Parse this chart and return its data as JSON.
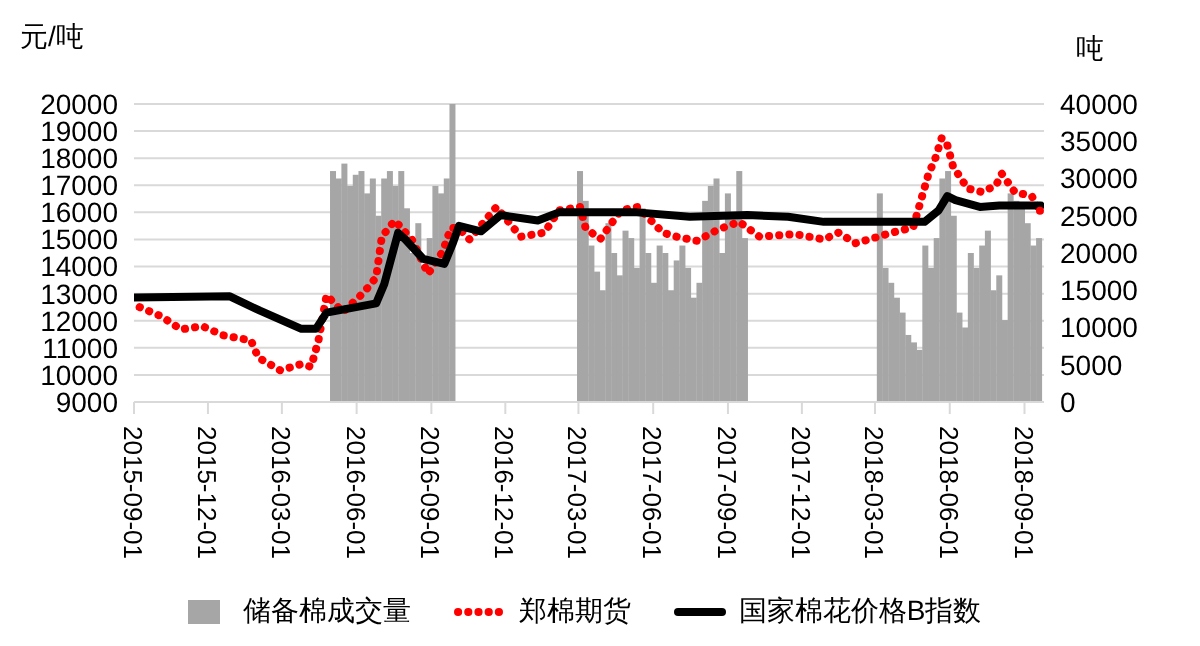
{
  "chart_data": {
    "type": "line",
    "ylabel": "元/吨",
    "y2label": "吨",
    "xlim": [
      "2015-09-01",
      "2018-09-25"
    ],
    "xticks": [
      "2015-09-01",
      "2015-12-01",
      "2016-03-01",
      "2016-06-01",
      "2016-09-01",
      "2016-12-01",
      "2017-03-01",
      "2017-06-01",
      "2017-09-01",
      "2017-12-01",
      "2018-03-01",
      "2018-06-01",
      "2018-09-01"
    ],
    "ylim": [
      9000,
      20000
    ],
    "yticks": [
      9000,
      10000,
      11000,
      12000,
      13000,
      14000,
      15000,
      16000,
      17000,
      18000,
      19000,
      20000
    ],
    "y2lim": [
      0,
      40000
    ],
    "y2ticks": [
      0,
      5000,
      10000,
      15000,
      20000,
      25000,
      30000,
      35000,
      40000
    ],
    "grid": "y",
    "legend": "bottom",
    "series": [
      {
        "name": "储备棉成交量",
        "type": "bar",
        "axis": "y2",
        "color": "#a6a6a6",
        "x": [
          "2016-05-03",
          "2016-05-10",
          "2016-05-17",
          "2016-05-24",
          "2016-05-31",
          "2016-06-07",
          "2016-06-14",
          "2016-06-21",
          "2016-06-28",
          "2016-07-05",
          "2016-07-12",
          "2016-07-19",
          "2016-07-26",
          "2016-08-02",
          "2016-08-09",
          "2016-08-16",
          "2016-08-23",
          "2016-08-30",
          "2016-09-06",
          "2016-09-13",
          "2016-09-20",
          "2016-09-27",
          "2017-03-03",
          "2017-03-10",
          "2017-03-17",
          "2017-03-24",
          "2017-03-31",
          "2017-04-07",
          "2017-04-14",
          "2017-04-21",
          "2017-04-28",
          "2017-05-05",
          "2017-05-12",
          "2017-05-19",
          "2017-05-26",
          "2017-06-02",
          "2017-06-09",
          "2017-06-16",
          "2017-06-23",
          "2017-06-30",
          "2017-07-07",
          "2017-07-14",
          "2017-07-21",
          "2017-07-28",
          "2017-08-04",
          "2017-08-11",
          "2017-08-18",
          "2017-08-25",
          "2017-09-01",
          "2017-09-08",
          "2017-09-15",
          "2017-09-22",
          "2018-03-07",
          "2018-03-14",
          "2018-03-21",
          "2018-03-28",
          "2018-04-04",
          "2018-04-11",
          "2018-04-18",
          "2018-04-25",
          "2018-05-02",
          "2018-05-09",
          "2018-05-16",
          "2018-05-23",
          "2018-05-30",
          "2018-06-06",
          "2018-06-13",
          "2018-06-20",
          "2018-06-27",
          "2018-07-04",
          "2018-07-11",
          "2018-07-18",
          "2018-07-25",
          "2018-08-01",
          "2018-08-08",
          "2018-08-15",
          "2018-08-22",
          "2018-08-29",
          "2018-09-05",
          "2018-09-12",
          "2018-09-19"
        ],
        "values": [
          31000,
          30000,
          32000,
          29000,
          30500,
          31000,
          28000,
          30000,
          25000,
          30000,
          31000,
          29000,
          31000,
          26000,
          20000,
          24000,
          18000,
          22000,
          29000,
          28000,
          30000,
          40000,
          31000,
          27000,
          21000,
          17500,
          15000,
          24000,
          20000,
          17000,
          23000,
          22000,
          18000,
          26000,
          20000,
          16000,
          21000,
          20000,
          15000,
          19000,
          21000,
          18000,
          14000,
          16000,
          27000,
          29000,
          30000,
          20000,
          28000,
          25000,
          31000,
          22000,
          28000,
          18000,
          16000,
          14000,
          12000,
          9000,
          8000,
          7000,
          21000,
          18000,
          22000,
          30000,
          31000,
          25000,
          12000,
          10000,
          20000,
          18000,
          21000,
          23000,
          15000,
          17000,
          11000,
          28000,
          27000,
          26000,
          24000,
          21000,
          22000
        ]
      },
      {
        "name": "郑棉期货",
        "line_style": "dotted",
        "color": "#ff0000",
        "x": [
          "2015-09-08",
          "2015-10-04",
          "2015-10-29",
          "2015-11-24",
          "2015-12-20",
          "2016-01-23",
          "2016-02-01",
          "2016-02-28",
          "2016-03-25",
          "2016-04-06",
          "2016-04-15",
          "2016-04-25",
          "2016-05-15",
          "2016-06-10",
          "2016-06-25",
          "2016-07-02",
          "2016-07-18",
          "2016-08-08",
          "2016-08-28",
          "2016-09-15",
          "2016-09-25",
          "2016-10-05",
          "2016-10-18",
          "2016-11-20",
          "2016-12-20",
          "2017-01-18",
          "2017-02-05",
          "2017-03-03",
          "2017-03-10",
          "2017-03-28",
          "2017-04-22",
          "2017-05-13",
          "2017-06-13",
          "2017-06-30",
          "2017-07-25",
          "2017-08-20",
          "2017-09-15",
          "2017-10-10",
          "2017-11-22",
          "2017-12-28",
          "2018-01-15",
          "2018-02-05",
          "2018-03-22",
          "2018-04-17",
          "2018-05-06",
          "2018-05-14",
          "2018-05-22",
          "2018-05-28",
          "2018-06-05",
          "2018-06-23",
          "2018-07-11",
          "2018-07-28",
          "2018-08-04",
          "2018-08-20",
          "2018-09-10",
          "2018-09-20"
        ],
        "values": [
          12500,
          12170,
          11680,
          11800,
          11460,
          11270,
          10640,
          10170,
          10400,
          10300,
          11270,
          12940,
          12320,
          13050,
          13600,
          15100,
          15700,
          15000,
          13730,
          14560,
          15430,
          15400,
          15000,
          16200,
          15100,
          15250,
          16070,
          16200,
          15400,
          15020,
          16070,
          16200,
          15250,
          15100,
          14950,
          15370,
          15650,
          15100,
          15200,
          15000,
          15250,
          14860,
          15250,
          15450,
          17430,
          17970,
          18740,
          18600,
          17700,
          16880,
          16750,
          17000,
          17430,
          16750,
          16600,
          16060
        ]
      },
      {
        "name": "国家棉花价格B指数",
        "line_style": "solid",
        "color": "#000000",
        "x": [
          "2015-09-01",
          "2015-12-28",
          "2016-02-03",
          "2016-03-25",
          "2016-04-12",
          "2016-04-25",
          "2016-06-25",
          "2016-07-05",
          "2016-07-22",
          "2016-07-31",
          "2016-08-22",
          "2016-09-17",
          "2016-09-27",
          "2016-10-05",
          "2016-11-01",
          "2016-11-25",
          "2017-01-10",
          "2017-02-05",
          "2017-05-12",
          "2017-07-16",
          "2017-09-25",
          "2017-11-14",
          "2017-12-28",
          "2018-03-05",
          "2018-05-01",
          "2018-05-18",
          "2018-05-29",
          "2018-06-08",
          "2018-07-08",
          "2018-08-01",
          "2018-09-21"
        ],
        "values": [
          12860,
          12900,
          12370,
          11700,
          11700,
          12300,
          12640,
          13350,
          15240,
          15000,
          14280,
          14100,
          14830,
          15500,
          15300,
          15900,
          15700,
          16000,
          16000,
          15840,
          15900,
          15840,
          15650,
          15650,
          15650,
          16060,
          16600,
          16450,
          16200,
          16250,
          16250
        ]
      }
    ]
  }
}
